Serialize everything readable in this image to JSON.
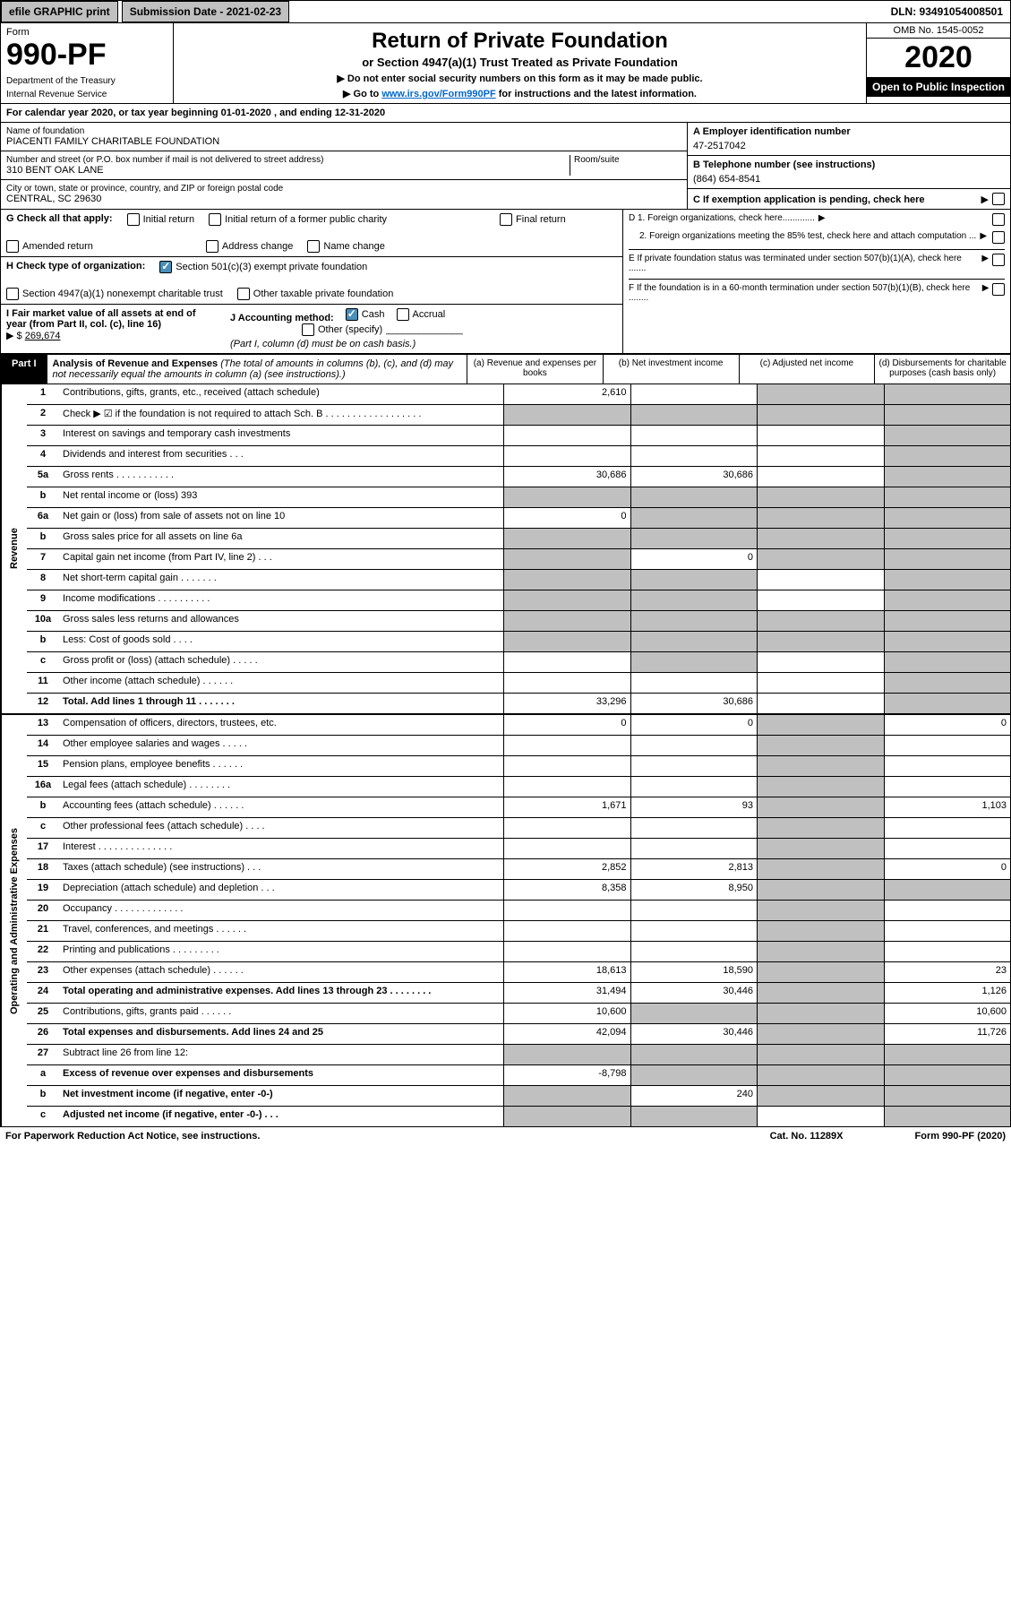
{
  "topBar": {
    "efile": "efile GRAPHIC print",
    "subDate": "Submission Date - 2021-02-23",
    "dln": "DLN: 93491054008501"
  },
  "header": {
    "formLabel": "Form",
    "formNum": "990-PF",
    "dept1": "Department of the Treasury",
    "dept2": "Internal Revenue Service",
    "title": "Return of Private Foundation",
    "subtitle": "or Section 4947(a)(1) Trust Treated as Private Foundation",
    "arrow1": "▶ Do not enter social security numbers on this form as it may be made public.",
    "arrow2pre": "▶ Go to ",
    "arrow2link": "www.irs.gov/Form990PF",
    "arrow2post": " for instructions and the latest information.",
    "omb": "OMB No. 1545-0052",
    "year": "2020",
    "open": "Open to Public Inspection"
  },
  "calYear": "For calendar year 2020, or tax year beginning 01-01-2020               , and ending 12-31-2020",
  "foundation": {
    "nameLabel": "Name of foundation",
    "name": "PIACENTI FAMILY CHARITABLE FOUNDATION",
    "addrLabel": "Number and street (or P.O. box number if mail is not delivered to street address)",
    "addr": "310 BENT OAK LANE",
    "roomLabel": "Room/suite",
    "cityLabel": "City or town, state or province, country, and ZIP or foreign postal code",
    "city": "CENTRAL, SC  29630"
  },
  "rightCells": {
    "aLabel": "A Employer identification number",
    "aVal": "47-2517042",
    "bLabel": "B  Telephone number (see instructions)",
    "bVal": "(864) 654-8541",
    "cLabel": "C  If exemption application is pending, check here",
    "d1": "D 1. Foreign organizations, check here.............",
    "d2": "2. Foreign organizations meeting the 85% test, check here and attach computation ...",
    "e": "E  If private foundation status was terminated under section 507(b)(1)(A), check here .......",
    "f": "F  If the foundation is in a 60-month termination under section 507(b)(1)(B), check here ........"
  },
  "checks": {
    "gLabel": "G Check all that apply:",
    "initial": "Initial return",
    "initialFormer": "Initial return of a former public charity",
    "final": "Final return",
    "amended": "Amended return",
    "address": "Address change",
    "nameChg": "Name change",
    "hLabel": "H Check type of organization:",
    "h501c3": "Section 501(c)(3) exempt private foundation",
    "h4947": "Section 4947(a)(1) nonexempt charitable trust",
    "hOther": "Other taxable private foundation",
    "iLabel": "I Fair market value of all assets at end of year (from Part II, col. (c), line 16)",
    "iVal": "269,674",
    "jLabel": "J Accounting method:",
    "jCash": "Cash",
    "jAccrual": "Accrual",
    "jOther": "Other (specify)",
    "jNote": "(Part I, column (d) must be on cash basis.)"
  },
  "part1": {
    "tab": "Part I",
    "title": "Analysis of Revenue and Expenses",
    "titleNote": " (The total of amounts in columns (b), (c), and (d) may not necessarily equal the amounts in column (a) (see instructions).)",
    "colA": "(a)   Revenue and expenses per books",
    "colB": "(b)   Net investment income",
    "colC": "(c)   Adjusted net income",
    "colD": "(d)   Disbursements for charitable purposes (cash basis only)"
  },
  "revenueSide": "Revenue",
  "expensesSide": "Operating and Administrative Expenses",
  "rows": [
    {
      "n": "1",
      "d": "Contributions, gifts, grants, etc., received (attach schedule)",
      "a": "2,610",
      "b": "",
      "c": "g",
      "dd": "g"
    },
    {
      "n": "2",
      "d": "Check ▶ ☑ if the foundation is not required to attach Sch. B  .  .  .  .  .  .  .  .  .  .  .  .  .  .  .  .  .  .",
      "a": "g",
      "b": "g",
      "c": "g",
      "dd": "g"
    },
    {
      "n": "3",
      "d": "Interest on savings and temporary cash investments",
      "a": "",
      "b": "",
      "c": "",
      "dd": "g"
    },
    {
      "n": "4",
      "d": "Dividends and interest from securities   .   .   .",
      "a": "",
      "b": "",
      "c": "",
      "dd": "g"
    },
    {
      "n": "5a",
      "d": "Gross rents   .   .   .   .   .   .   .   .   .   .   .",
      "a": "30,686",
      "b": "30,686",
      "c": "",
      "dd": "g"
    },
    {
      "n": "b",
      "d": "Net rental income or (loss)                                  393",
      "a": "g",
      "b": "g",
      "c": "g",
      "dd": "g"
    },
    {
      "n": "6a",
      "d": "Net gain or (loss) from sale of assets not on line 10",
      "a": "0",
      "b": "g",
      "c": "g",
      "dd": "g"
    },
    {
      "n": "b",
      "d": "Gross sales price for all assets on line 6a",
      "a": "g",
      "b": "g",
      "c": "g",
      "dd": "g"
    },
    {
      "n": "7",
      "d": "Capital gain net income (from Part IV, line 2)   .   .   .",
      "a": "g",
      "b": "0",
      "c": "g",
      "dd": "g"
    },
    {
      "n": "8",
      "d": "Net short-term capital gain   .   .   .   .   .   .   .",
      "a": "g",
      "b": "g",
      "c": "",
      "dd": "g"
    },
    {
      "n": "9",
      "d": "Income modifications  .   .   .   .   .   .   .   .   .   .",
      "a": "g",
      "b": "g",
      "c": "",
      "dd": "g"
    },
    {
      "n": "10a",
      "d": "Gross sales less returns and allowances",
      "a": "g",
      "b": "g",
      "c": "g",
      "dd": "g"
    },
    {
      "n": "b",
      "d": "Less: Cost of goods sold   .   .   .   .",
      "a": "g",
      "b": "g",
      "c": "g",
      "dd": "g"
    },
    {
      "n": "c",
      "d": "Gross profit or (loss) (attach schedule)   .   .   .   .   .",
      "a": "",
      "b": "g",
      "c": "",
      "dd": "g"
    },
    {
      "n": "11",
      "d": "Other income (attach schedule)   .   .   .   .   .   .",
      "a": "",
      "b": "",
      "c": "",
      "dd": "g"
    },
    {
      "n": "12",
      "d": "Total. Add lines 1 through 11   .   .   .   .   .   .   .",
      "a": "33,296",
      "b": "30,686",
      "c": "",
      "dd": "g",
      "bold": true
    }
  ],
  "expRows": [
    {
      "n": "13",
      "d": "Compensation of officers, directors, trustees, etc.",
      "a": "0",
      "b": "0",
      "c": "g",
      "dd": "0"
    },
    {
      "n": "14",
      "d": "Other employee salaries and wages   .   .   .   .   .",
      "a": "",
      "b": "",
      "c": "g",
      "dd": ""
    },
    {
      "n": "15",
      "d": "Pension plans, employee benefits   .   .   .   .   .   .",
      "a": "",
      "b": "",
      "c": "g",
      "dd": ""
    },
    {
      "n": "16a",
      "d": "Legal fees (attach schedule)  .   .   .   .   .   .   .   .",
      "a": "",
      "b": "",
      "c": "g",
      "dd": ""
    },
    {
      "n": "b",
      "d": "Accounting fees (attach schedule)   .   .   .   .   .   .",
      "a": "1,671",
      "b": "93",
      "c": "g",
      "dd": "1,103"
    },
    {
      "n": "c",
      "d": "Other professional fees (attach schedule)   .   .   .   .",
      "a": "",
      "b": "",
      "c": "g",
      "dd": ""
    },
    {
      "n": "17",
      "d": "Interest   .   .   .   .   .   .   .   .   .   .   .   .   .   .",
      "a": "",
      "b": "",
      "c": "g",
      "dd": ""
    },
    {
      "n": "18",
      "d": "Taxes (attach schedule) (see instructions)   .   .   .",
      "a": "2,852",
      "b": "2,813",
      "c": "g",
      "dd": "0"
    },
    {
      "n": "19",
      "d": "Depreciation (attach schedule) and depletion   .   .   .",
      "a": "8,358",
      "b": "8,950",
      "c": "g",
      "dd": "g"
    },
    {
      "n": "20",
      "d": "Occupancy  .   .   .   .   .   .   .   .   .   .   .   .   .",
      "a": "",
      "b": "",
      "c": "g",
      "dd": ""
    },
    {
      "n": "21",
      "d": "Travel, conferences, and meetings   .   .   .   .   .   .",
      "a": "",
      "b": "",
      "c": "g",
      "dd": ""
    },
    {
      "n": "22",
      "d": "Printing and publications  .   .   .   .   .   .   .   .   .",
      "a": "",
      "b": "",
      "c": "g",
      "dd": ""
    },
    {
      "n": "23",
      "d": "Other expenses (attach schedule)   .   .   .   .   .   .",
      "a": "18,613",
      "b": "18,590",
      "c": "g",
      "dd": "23"
    },
    {
      "n": "24",
      "d": "Total operating and administrative expenses. Add lines 13 through 23   .   .   .   .   .   .   .   .",
      "a": "31,494",
      "b": "30,446",
      "c": "g",
      "dd": "1,126",
      "bold": true
    },
    {
      "n": "25",
      "d": "Contributions, gifts, grants paid   .   .   .   .   .   .",
      "a": "10,600",
      "b": "g",
      "c": "g",
      "dd": "10,600"
    },
    {
      "n": "26",
      "d": "Total expenses and disbursements. Add lines 24 and 25",
      "a": "42,094",
      "b": "30,446",
      "c": "g",
      "dd": "11,726",
      "bold": true
    },
    {
      "n": "27",
      "d": "Subtract line 26 from line 12:",
      "a": "g",
      "b": "g",
      "c": "g",
      "dd": "g"
    },
    {
      "n": "a",
      "d": "Excess of revenue over expenses and disbursements",
      "a": "-8,798",
      "b": "g",
      "c": "g",
      "dd": "g",
      "bold": true
    },
    {
      "n": "b",
      "d": "Net investment income (if negative, enter -0-)",
      "a": "g",
      "b": "240",
      "c": "g",
      "dd": "g",
      "bold": true
    },
    {
      "n": "c",
      "d": "Adjusted net income (if negative, enter -0-)   .   .   .",
      "a": "g",
      "b": "g",
      "c": "",
      "dd": "g",
      "bold": true
    }
  ],
  "footer": {
    "left": "For Paperwork Reduction Act Notice, see instructions.",
    "mid": "Cat. No. 11289X",
    "right": "Form 990-PF (2020)"
  }
}
